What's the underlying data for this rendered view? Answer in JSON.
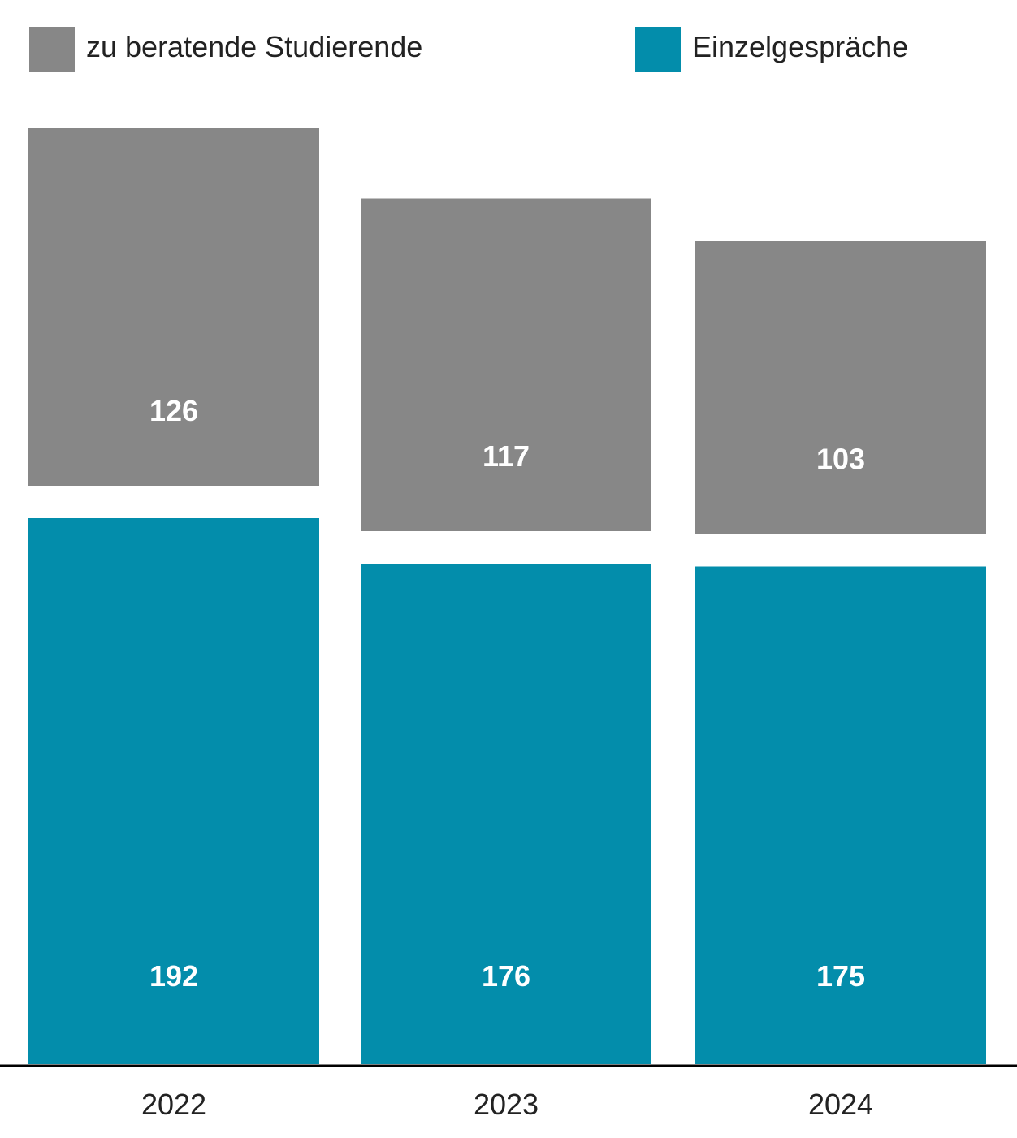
{
  "chart_data": {
    "type": "bar",
    "stacked": true,
    "categories": [
      "2022",
      "2023",
      "2024"
    ],
    "series": [
      {
        "name": "zu beratende Studierende",
        "color": "#878787",
        "values": [
          126,
          117,
          103
        ]
      },
      {
        "name": "Einzelgespräche",
        "color": "#038dab",
        "values": [
          192,
          176,
          175
        ]
      }
    ],
    "title": "",
    "xlabel": "",
    "ylabel": "",
    "legend_position": "top",
    "grid": false,
    "y_axis_visible": false,
    "data_labels": true
  }
}
